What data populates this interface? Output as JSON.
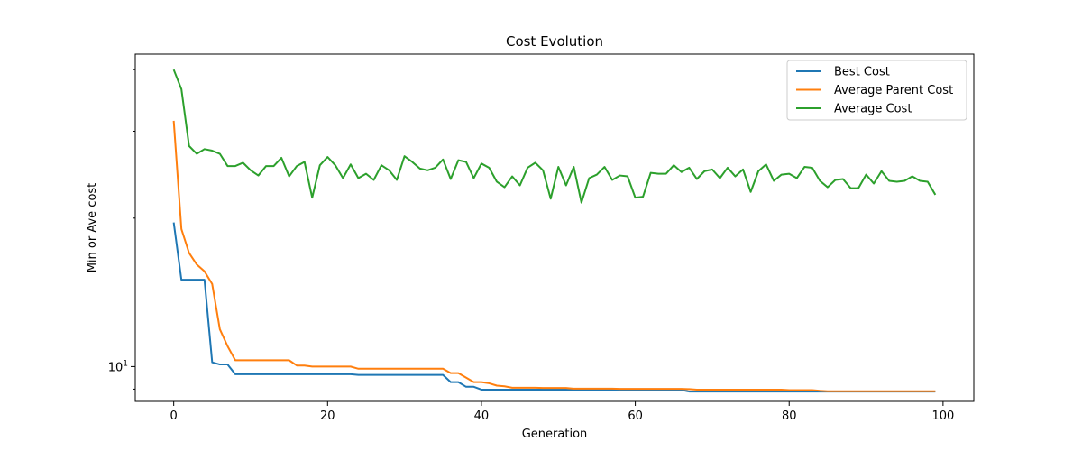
{
  "chart_data": {
    "type": "line",
    "title": "Cost Evolution",
    "xlabel": "Generation",
    "ylabel": "Min or Ave cost",
    "xlim": [
      -5,
      104
    ],
    "ylim": [
      8.5,
      43
    ],
    "yscale": "log",
    "xticks": [
      0,
      20,
      40,
      60,
      80,
      100
    ],
    "yticks_major": [
      {
        "value": 10,
        "label": "10",
        "exponent": "1"
      }
    ],
    "yticks_minor": [
      9,
      20,
      30,
      40
    ],
    "grid": false,
    "legend_position": "upper right",
    "x": [
      0,
      1,
      2,
      3,
      4,
      5,
      6,
      7,
      8,
      9,
      10,
      11,
      12,
      13,
      14,
      15,
      16,
      17,
      18,
      19,
      20,
      21,
      22,
      23,
      24,
      25,
      26,
      27,
      28,
      29,
      30,
      31,
      32,
      33,
      34,
      35,
      36,
      37,
      38,
      39,
      40,
      41,
      42,
      43,
      44,
      45,
      46,
      47,
      48,
      49,
      50,
      51,
      52,
      53,
      54,
      55,
      56,
      57,
      58,
      59,
      60,
      61,
      62,
      63,
      64,
      65,
      66,
      67,
      68,
      69,
      70,
      71,
      72,
      73,
      74,
      75,
      76,
      77,
      78,
      79,
      80,
      81,
      82,
      83,
      84,
      85,
      86,
      87,
      88,
      89,
      90,
      91,
      92,
      93,
      94,
      95,
      96,
      97,
      98,
      99
    ],
    "series": [
      {
        "name": "Best Cost",
        "color": "#1f77b4",
        "values": [
          19.6,
          15.0,
          15.0,
          15.0,
          15.0,
          10.2,
          10.1,
          10.1,
          9.65,
          9.65,
          9.65,
          9.65,
          9.65,
          9.65,
          9.65,
          9.65,
          9.65,
          9.65,
          9.65,
          9.65,
          9.65,
          9.65,
          9.65,
          9.65,
          9.62,
          9.62,
          9.62,
          9.62,
          9.62,
          9.62,
          9.62,
          9.62,
          9.62,
          9.62,
          9.62,
          9.62,
          9.3,
          9.3,
          9.1,
          9.1,
          8.98,
          8.98,
          8.98,
          8.98,
          8.98,
          8.98,
          8.98,
          8.98,
          8.98,
          8.98,
          8.98,
          8.98,
          8.97,
          8.97,
          8.97,
          8.97,
          8.97,
          8.97,
          8.97,
          8.97,
          8.97,
          8.97,
          8.97,
          8.97,
          8.97,
          8.97,
          8.97,
          8.9,
          8.9,
          8.9,
          8.9,
          8.9,
          8.9,
          8.9,
          8.9,
          8.9,
          8.9,
          8.9,
          8.9,
          8.9,
          8.9,
          8.9,
          8.9,
          8.9,
          8.9,
          8.9,
          8.9,
          8.9,
          8.9,
          8.9,
          8.9,
          8.9,
          8.9,
          8.9,
          8.9,
          8.9,
          8.9,
          8.9,
          8.9,
          8.9
        ]
      },
      {
        "name": "Average Parent Cost",
        "color": "#ff7f0e",
        "values": [
          31.5,
          19.0,
          17.0,
          16.1,
          15.6,
          14.7,
          11.9,
          11.0,
          10.3,
          10.3,
          10.3,
          10.3,
          10.3,
          10.3,
          10.3,
          10.3,
          10.05,
          10.05,
          10.0,
          10.0,
          10.0,
          10.0,
          10.0,
          10.0,
          9.9,
          9.9,
          9.9,
          9.9,
          9.9,
          9.9,
          9.9,
          9.9,
          9.9,
          9.9,
          9.9,
          9.9,
          9.7,
          9.7,
          9.5,
          9.3,
          9.3,
          9.25,
          9.15,
          9.12,
          9.06,
          9.06,
          9.06,
          9.06,
          9.05,
          9.05,
          9.05,
          9.05,
          9.02,
          9.02,
          9.02,
          9.02,
          9.02,
          9.02,
          9.01,
          9.01,
          9.01,
          9.01,
          9.01,
          9.01,
          9.01,
          9.01,
          9.01,
          9.0,
          8.98,
          8.98,
          8.98,
          8.98,
          8.98,
          8.98,
          8.98,
          8.98,
          8.98,
          8.98,
          8.98,
          8.98,
          8.96,
          8.96,
          8.96,
          8.96,
          8.93,
          8.91,
          8.91,
          8.91,
          8.91,
          8.91,
          8.91,
          8.91,
          8.91,
          8.91,
          8.91,
          8.91,
          8.91,
          8.91,
          8.91,
          8.91
        ]
      },
      {
        "name": "Average Cost",
        "color": "#2ca02c",
        "values": [
          40.0,
          36.5,
          28.0,
          27.0,
          27.6,
          27.4,
          27.0,
          25.5,
          25.5,
          25.9,
          25.0,
          24.4,
          25.5,
          25.5,
          26.5,
          24.3,
          25.5,
          26.0,
          22.0,
          25.6,
          26.6,
          25.6,
          24.1,
          25.7,
          24.1,
          24.6,
          23.9,
          25.6,
          25.0,
          23.9,
          26.7,
          26.0,
          25.2,
          25.0,
          25.3,
          26.3,
          24.0,
          26.2,
          26.0,
          24.1,
          25.8,
          25.3,
          23.7,
          23.1,
          24.3,
          23.3,
          25.3,
          25.9,
          25.0,
          21.9,
          25.4,
          23.3,
          25.4,
          21.5,
          24.1,
          24.5,
          25.4,
          23.9,
          24.4,
          24.3,
          22.0,
          22.1,
          24.7,
          24.6,
          24.6,
          25.6,
          24.8,
          25.3,
          24.0,
          24.9,
          25.1,
          24.1,
          25.3,
          24.3,
          25.1,
          22.6,
          24.9,
          25.7,
          23.8,
          24.5,
          24.6,
          24.1,
          25.4,
          25.3,
          23.8,
          23.1,
          23.9,
          24.0,
          23.0,
          23.0,
          24.5,
          23.5,
          24.9,
          23.8,
          23.7,
          23.8,
          24.3,
          23.8,
          23.7,
          22.3
        ]
      }
    ]
  }
}
